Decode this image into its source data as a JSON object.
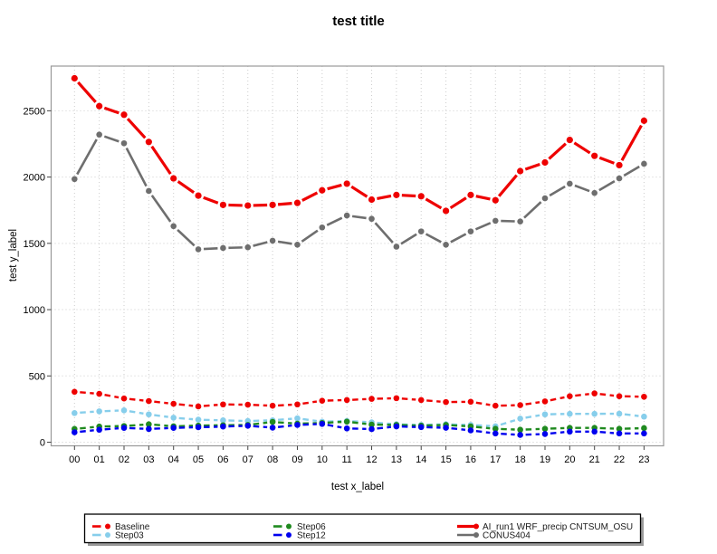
{
  "figure": {
    "background": "#ffffff",
    "plot_box_color": "#999999",
    "gridline_color": "#cccccc",
    "tick_color": "#444444"
  },
  "chart_data": {
    "type": "line",
    "title": "test title",
    "xlabel": "test x_label",
    "ylabel": "test y_label",
    "categories": [
      "00",
      "01",
      "02",
      "03",
      "04",
      "05",
      "06",
      "07",
      "08",
      "09",
      "10",
      "11",
      "12",
      "13",
      "14",
      "15",
      "16",
      "17",
      "18",
      "19",
      "20",
      "21",
      "22",
      "23"
    ],
    "y_ticks": [
      0,
      500,
      1000,
      1500,
      2000,
      2500
    ],
    "ylim": [
      -30,
      2840
    ],
    "grid": "dotted, both axes",
    "legend_position": "bottom boxed, 3 columns, 2 rows",
    "series": [
      {
        "name": "Baseline",
        "color": "#ee0000",
        "style": "dashed",
        "line_width": 2.4,
        "marker": "circle",
        "values": [
          380,
          365,
          330,
          310,
          290,
          270,
          285,
          283,
          275,
          285,
          313,
          318,
          327,
          332,
          318,
          303,
          305,
          275,
          280,
          308,
          347,
          368,
          347,
          343
        ]
      },
      {
        "name": "Step03",
        "color": "#87ceeb",
        "style": "dashed",
        "line_width": 2.4,
        "marker": "circle",
        "values": [
          220,
          233,
          240,
          210,
          185,
          170,
          165,
          160,
          165,
          180,
          155,
          160,
          150,
          135,
          130,
          135,
          130,
          120,
          178,
          210,
          214,
          214,
          215,
          193
        ]
      },
      {
        "name": "Step06",
        "color": "#1f8a1f",
        "style": "dashed",
        "line_width": 2.4,
        "marker": "circle",
        "values": [
          100,
          118,
          122,
          135,
          120,
          125,
          128,
          130,
          153,
          140,
          145,
          155,
          133,
          130,
          125,
          130,
          119,
          101,
          94,
          101,
          108,
          108,
          101,
          106
        ]
      },
      {
        "name": "Step12",
        "color": "#0000ee",
        "style": "dashed",
        "line_width": 2.4,
        "marker": "circle",
        "values": [
          75,
          94,
          108,
          100,
          108,
          113,
          118,
          124,
          110,
          130,
          138,
          104,
          99,
          119,
          114,
          109,
          89,
          66,
          55,
          62,
          80,
          80,
          66,
          66
        ]
      },
      {
        "name": "AI_run1 WRF_precip CNTSUM_OSU",
        "color": "#ee0000",
        "style": "solid",
        "line_width": 3.2,
        "marker": "circle",
        "values": [
          2745,
          2535,
          2470,
          2265,
          1990,
          1860,
          1790,
          1785,
          1790,
          1805,
          1900,
          1950,
          1830,
          1865,
          1855,
          1745,
          1865,
          1825,
          2045,
          2110,
          2280,
          2160,
          2090,
          2425
        ]
      },
      {
        "name": "CONUS404",
        "color": "#6e6e6e",
        "style": "solid",
        "line_width": 2.6,
        "marker": "circle",
        "values": [
          1985,
          2320,
          2255,
          1895,
          1630,
          1455,
          1465,
          1470,
          1520,
          1490,
          1620,
          1710,
          1685,
          1475,
          1590,
          1490,
          1590,
          1670,
          1665,
          1840,
          1950,
          1880,
          1990,
          2100
        ]
      }
    ],
    "legend_columns": [
      [
        0,
        1
      ],
      [
        2,
        3
      ],
      [
        4,
        5
      ]
    ]
  }
}
